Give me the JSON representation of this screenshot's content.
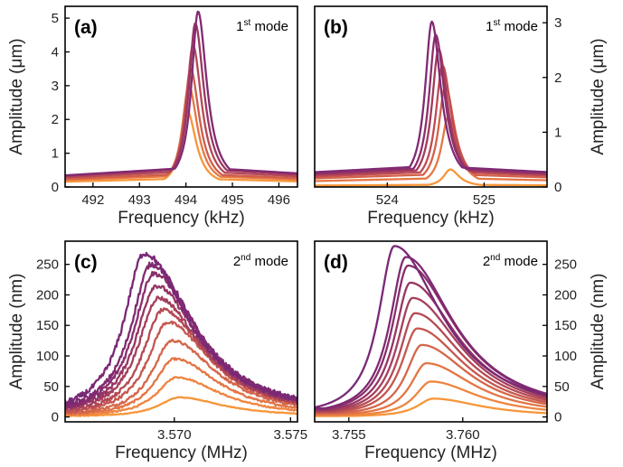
{
  "chart_data": [
    {
      "id": "a",
      "type": "line",
      "panel_label": "(a)",
      "mode_prefix": "1",
      "mode_sup": "st",
      "mode_suffix": " mode",
      "xlabel": "Frequency (kHz)",
      "ylabel": "Amplitude (μm)",
      "y_axis_side": "left",
      "xlim": [
        491.4,
        496.4
      ],
      "ylim": [
        0,
        5.35
      ],
      "xticks": [
        492,
        493,
        494,
        495,
        496
      ],
      "yticks": [
        0,
        1,
        2,
        3,
        4,
        5
      ],
      "grid": false,
      "series": [
        {
          "peak_x": 494.03,
          "peak_y": 2.25,
          "color": "#f6963a"
        },
        {
          "peak_x": 494.06,
          "peak_y": 3.0,
          "color": "#e67744"
        },
        {
          "peak_x": 494.1,
          "peak_y": 3.5,
          "color": "#cf5d4c"
        },
        {
          "peak_x": 494.15,
          "peak_y": 4.2,
          "color": "#b54856"
        },
        {
          "peak_x": 494.2,
          "peak_y": 4.85,
          "color": "#9a3662"
        },
        {
          "peak_x": 494.26,
          "peak_y": 5.2,
          "color": "#822a72"
        }
      ]
    },
    {
      "id": "b",
      "type": "line",
      "panel_label": "(b)",
      "mode_prefix": "1",
      "mode_sup": "st",
      "mode_suffix": " mode",
      "xlabel": "Frequency (kHz)",
      "ylabel": "Amplitude (μm)",
      "y_axis_side": "right",
      "xlim": [
        523.25,
        525.65
      ],
      "ylim": [
        0,
        3.3
      ],
      "xticks": [
        524,
        525
      ],
      "yticks": [
        0,
        1,
        2,
        3
      ],
      "grid": false,
      "series": [
        {
          "peak_x": 524.65,
          "peak_y": 0.32,
          "color": "#f6963a"
        },
        {
          "peak_x": 524.63,
          "peak_y": 1.28,
          "color": "#e67744"
        },
        {
          "peak_x": 524.6,
          "peak_y": 1.85,
          "color": "#d56149"
        },
        {
          "peak_x": 524.57,
          "peak_y": 2.22,
          "color": "#be4c52"
        },
        {
          "peak_x": 524.53,
          "peak_y": 2.52,
          "color": "#a53a5d"
        },
        {
          "peak_x": 524.5,
          "peak_y": 2.78,
          "color": "#8e2f6a"
        },
        {
          "peak_x": 524.46,
          "peak_y": 3.02,
          "color": "#802a74"
        }
      ]
    },
    {
      "id": "c",
      "type": "line",
      "panel_label": "(c)",
      "mode_prefix": "2",
      "mode_sup": "nd",
      "mode_suffix": " mode",
      "xlabel": "Frequency (MHz)",
      "ylabel": "Amplitude (nm)",
      "y_axis_side": "left",
      "xlim": [
        3.5653,
        3.5753
      ],
      "ylim": [
        -8,
        288
      ],
      "xticks": [
        3.57,
        3.575
      ],
      "yticks": [
        0,
        50,
        100,
        150,
        200,
        250
      ],
      "xtick_labels": [
        "3.570",
        "3.575"
      ],
      "grid": false,
      "series": [
        {
          "peak_x": 3.5702,
          "peak_y": 32,
          "color": "#f6963a"
        },
        {
          "peak_x": 3.5701,
          "peak_y": 65,
          "color": "#ef8540"
        },
        {
          "peak_x": 3.57,
          "peak_y": 95,
          "color": "#e37545"
        },
        {
          "peak_x": 3.5699,
          "peak_y": 125,
          "color": "#d5664a"
        },
        {
          "peak_x": 3.5697,
          "peak_y": 155,
          "color": "#c5574f"
        },
        {
          "peak_x": 3.5695,
          "peak_y": 175,
          "color": "#b54a55"
        },
        {
          "peak_x": 3.5693,
          "peak_y": 195,
          "color": "#a53f5c"
        },
        {
          "peak_x": 3.5692,
          "peak_y": 215,
          "color": "#963563"
        },
        {
          "peak_x": 3.5691,
          "peak_y": 235,
          "color": "#892e6b"
        },
        {
          "peak_x": 3.569,
          "peak_y": 250,
          "color": "#7f2a72"
        },
        {
          "peak_x": 3.5687,
          "peak_y": 268,
          "color": "#792876"
        }
      ]
    },
    {
      "id": "d",
      "type": "line",
      "panel_label": "(d)",
      "mode_prefix": "2",
      "mode_sup": "nd",
      "mode_suffix": " mode",
      "xlabel": "Frequency (MHz)",
      "ylabel": "Amplitude (nm)",
      "y_axis_side": "right",
      "xlim": [
        3.7535,
        3.7637
      ],
      "ylim": [
        -8,
        288
      ],
      "xticks": [
        3.755,
        3.76
      ],
      "yticks": [
        0,
        50,
        100,
        150,
        200,
        250
      ],
      "xtick_labels": [
        "3.755",
        "3.760"
      ],
      "grid": false,
      "series": [
        {
          "peak_x": 3.7587,
          "peak_y": 30,
          "color": "#f6963a"
        },
        {
          "peak_x": 3.7586,
          "peak_y": 58,
          "color": "#ef8540"
        },
        {
          "peak_x": 3.7584,
          "peak_y": 88,
          "color": "#e37545"
        },
        {
          "peak_x": 3.7582,
          "peak_y": 118,
          "color": "#d5664a"
        },
        {
          "peak_x": 3.758,
          "peak_y": 145,
          "color": "#c5574f"
        },
        {
          "peak_x": 3.7579,
          "peak_y": 170,
          "color": "#b54a55"
        },
        {
          "peak_x": 3.7578,
          "peak_y": 195,
          "color": "#a53f5c"
        },
        {
          "peak_x": 3.7577,
          "peak_y": 220,
          "color": "#963563"
        },
        {
          "peak_x": 3.7576,
          "peak_y": 248,
          "color": "#892e6b"
        },
        {
          "peak_x": 3.7575,
          "peak_y": 262,
          "color": "#7f2a72"
        },
        {
          "peak_x": 3.757,
          "peak_y": 280,
          "color": "#792876"
        }
      ]
    }
  ]
}
